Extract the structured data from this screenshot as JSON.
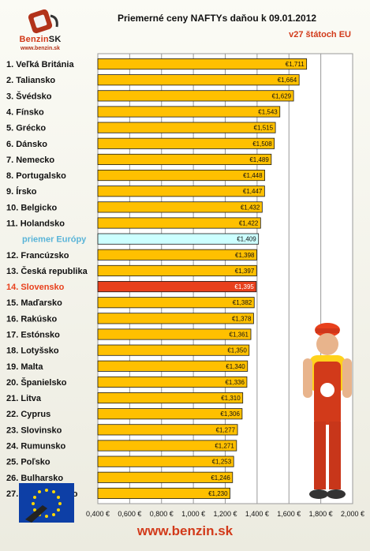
{
  "header": {
    "title": "Priemerné ceny NAFTYs daňou k 09.01.2012",
    "subtitle": "v27 štátoch EU"
  },
  "logo": {
    "brand": "Benzin",
    "brand_suffix": "SK",
    "url": "www.benzin.sk"
  },
  "footer": {
    "url": "www.benzin.sk"
  },
  "colors": {
    "bar": "#ffc000",
    "average": "#ccffff",
    "highlight": "#e8401c",
    "average_label": "#59b4d8",
    "highlight_label": "#e8401c",
    "plot_bg": "#ffffff"
  },
  "chart_data": {
    "type": "bar",
    "orientation": "horizontal",
    "title": "Priemerné ceny NAFTYs daňou k 09.01.2012",
    "subtitle": "v27 štátoch EU",
    "xlim": [
      0.4,
      2.0
    ],
    "ticks": [
      "0,400 €",
      "0,600 €",
      "0,800 €",
      "1,000 €",
      "1,200 €",
      "1,400 €",
      "1,600 €",
      "1,800 €",
      "2,000 €"
    ],
    "tick_values": [
      0.4,
      0.6,
      0.8,
      1.0,
      1.2,
      1.4,
      1.6,
      1.8,
      2.0
    ],
    "grid": true,
    "bars": [
      {
        "category": "1. Veľká Británia",
        "value": 1.711,
        "label": "€1,711",
        "kind": "normal"
      },
      {
        "category": "2. Taliansko",
        "value": 1.664,
        "label": "€1,664",
        "kind": "normal"
      },
      {
        "category": "3. Švédsko",
        "value": 1.629,
        "label": "€1,629",
        "kind": "normal"
      },
      {
        "category": "4. Fínsko",
        "value": 1.543,
        "label": "€1,543",
        "kind": "normal"
      },
      {
        "category": "5. Grécko",
        "value": 1.515,
        "label": "€1,515",
        "kind": "normal"
      },
      {
        "category": "6. Dánsko",
        "value": 1.508,
        "label": "€1,508",
        "kind": "normal"
      },
      {
        "category": "7. Nemecko",
        "value": 1.489,
        "label": "€1,489",
        "kind": "normal"
      },
      {
        "category": "8. Portugalsko",
        "value": 1.448,
        "label": "€1,448",
        "kind": "normal"
      },
      {
        "category": "9. Írsko",
        "value": 1.447,
        "label": "€1,447",
        "kind": "normal"
      },
      {
        "category": "10. Belgicko",
        "value": 1.432,
        "label": "€1,432",
        "kind": "normal"
      },
      {
        "category": "11. Holandsko",
        "value": 1.422,
        "label": "€1,422",
        "kind": "normal"
      },
      {
        "category": "priemer Európy",
        "value": 1.409,
        "label": "€1,409",
        "kind": "average"
      },
      {
        "category": "12. Francúzsko",
        "value": 1.398,
        "label": "€1,398",
        "kind": "normal"
      },
      {
        "category": "13. Česká republika",
        "value": 1.397,
        "label": "€1,397",
        "kind": "normal"
      },
      {
        "category": "14. Slovensko",
        "value": 1.395,
        "label": "€1,395",
        "kind": "highlight"
      },
      {
        "category": "15. Maďarsko",
        "value": 1.382,
        "label": "€1,382",
        "kind": "normal"
      },
      {
        "category": "16. Rakúsko",
        "value": 1.378,
        "label": "€1,378",
        "kind": "normal"
      },
      {
        "category": "17. Estónsko",
        "value": 1.361,
        "label": "€1,361",
        "kind": "normal"
      },
      {
        "category": "18. Lotyšsko",
        "value": 1.35,
        "label": "€1,350",
        "kind": "normal"
      },
      {
        "category": "19. Malta",
        "value": 1.34,
        "label": "€1,340",
        "kind": "normal"
      },
      {
        "category": "20. Španielsko",
        "value": 1.336,
        "label": "€1,336",
        "kind": "normal"
      },
      {
        "category": "21. Litva",
        "value": 1.31,
        "label": "€1,310",
        "kind": "normal"
      },
      {
        "category": "22. Cyprus",
        "value": 1.306,
        "label": "€1,306",
        "kind": "normal"
      },
      {
        "category": "23. Slovinsko",
        "value": 1.277,
        "label": "€1,277",
        "kind": "normal"
      },
      {
        "category": "24. Rumunsko",
        "value": 1.271,
        "label": "€1,271",
        "kind": "normal"
      },
      {
        "category": "25. Poľsko",
        "value": 1.253,
        "label": "€1,253",
        "kind": "normal"
      },
      {
        "category": "26. Bulharsko",
        "value": 1.246,
        "label": "€1,246",
        "kind": "normal"
      },
      {
        "category": "27. Luxembursko",
        "value": 1.23,
        "label": "€1,230",
        "kind": "normal"
      }
    ]
  }
}
